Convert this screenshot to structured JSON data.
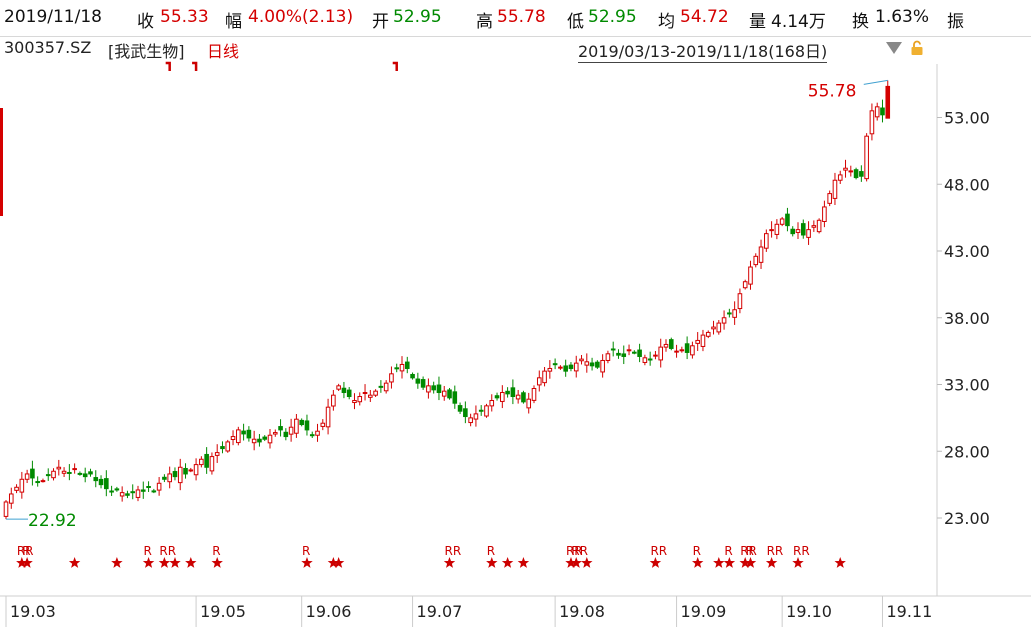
{
  "header": {
    "date": "2019/11/18",
    "close_label": "收",
    "close_value": "55.33",
    "change_label": "幅",
    "change_value": "4.00%(2.13)",
    "open_label": "开",
    "open_value": "52.95",
    "high_label": "高",
    "high_value": "55.78",
    "low_label": "低",
    "low_value": "52.95",
    "avg_label": "均",
    "avg_value": "54.72",
    "volume_label": "量",
    "volume_value": "4.14万",
    "turnover_label": "换",
    "turnover_value": "1.63%",
    "amplitude_label": "振"
  },
  "subheader": {
    "code": "300357.SZ",
    "name": "[我武生物]",
    "period": "日线",
    "range": "2019/03/13-2019/11/18(168日)"
  },
  "colors": {
    "up": "#d40000",
    "down": "#008a00",
    "marker": "#cc0000"
  },
  "chart_data": {
    "type": "candlestick",
    "x_range": [
      "2019-03-13",
      "2019-11-18"
    ],
    "sessions": 168,
    "ylim": [
      19.0,
      56.5
    ],
    "y_ticks": [
      "23.00",
      "28.00",
      "33.00",
      "38.00",
      "43.00",
      "48.00",
      "53.00"
    ],
    "y_tick_values": [
      23,
      28,
      33,
      38,
      43,
      48,
      53
    ],
    "x_ticks": [
      "19.03",
      "19.05",
      "19.06",
      "19.07",
      "19.08",
      "19.09",
      "19.10",
      "19.11"
    ],
    "x_tick_index": [
      0,
      36,
      56,
      77,
      104,
      127,
      147,
      166
    ],
    "max_label": "55.78",
    "min_label": "22.92",
    "closes": [
      24.2,
      24.8,
      25.3,
      25.9,
      26.3,
      26.0,
      25.7,
      25.8,
      26.2,
      26.5,
      26.8,
      26.5,
      26.4,
      26.7,
      26.3,
      26.1,
      26.3,
      25.8,
      25.5,
      25.2,
      25.0,
      25.1,
      24.9,
      24.7,
      24.9,
      25.1,
      25.0,
      25.3,
      25.0,
      25.6,
      25.9,
      26.3,
      26.1,
      26.8,
      26.3,
      26.6,
      27.0,
      27.4,
      26.8,
      27.6,
      27.9,
      28.2,
      28.7,
      29.1,
      29.6,
      29.3,
      29.0,
      28.9,
      28.7,
      28.9,
      29.2,
      29.4,
      29.6,
      29.1,
      29.8,
      30.4,
      30.0,
      29.6,
      29.2,
      29.5,
      30.1,
      31.3,
      32.2,
      32.9,
      32.4,
      32.1,
      31.8,
      32.1,
      32.4,
      32.2,
      32.5,
      32.8,
      33.1,
      33.8,
      34.2,
      34.5,
      34.2,
      33.5,
      33.1,
      32.8,
      32.9,
      32.6,
      32.4,
      32.5,
      32.0,
      31.6,
      31.0,
      30.6,
      30.5,
      30.8,
      31.0,
      31.4,
      31.8,
      32.0,
      32.4,
      32.3,
      32.1,
      32.2,
      31.7,
      31.9,
      32.7,
      33.5,
      34.0,
      34.2,
      34.5,
      34.3,
      34.0,
      34.2,
      34.6,
      34.9,
      34.7,
      34.4,
      34.3,
      34.8,
      35.3,
      35.6,
      35.2,
      35.1,
      35.6,
      35.4,
      35.1,
      35.0,
      34.9,
      35.2,
      35.8,
      36.0,
      35.7,
      35.5,
      35.6,
      35.4,
      35.9,
      36.3,
      36.7,
      36.9,
      37.3,
      37.6,
      38.0,
      38.3,
      38.6,
      39.8,
      40.7,
      41.8,
      42.6,
      43.3,
      44.3,
      44.6,
      45.0,
      45.4,
      44.9,
      44.3,
      44.6,
      44.2,
      44.6,
      44.9,
      45.3,
      46.3,
      47.3,
      48.3,
      48.7,
      49.2,
      49.0,
      48.5,
      48.6,
      51.6,
      53.5,
      53.8,
      53.2,
      55.33
    ],
    "markers": [
      {
        "index": 3,
        "tag": "RR"
      },
      {
        "index": 4,
        "tag": "R"
      },
      {
        "index": 13,
        "tag": ""
      },
      {
        "index": 21,
        "tag": ""
      },
      {
        "index": 27,
        "tag": "R"
      },
      {
        "index": 30,
        "tag": "RR"
      },
      {
        "index": 32,
        "tag": ""
      },
      {
        "index": 35,
        "tag": ""
      },
      {
        "index": 40,
        "tag": "R"
      },
      {
        "index": 57,
        "tag": "R"
      },
      {
        "index": 62,
        "tag": ""
      },
      {
        "index": 63,
        "tag": ""
      },
      {
        "index": 84,
        "tag": "RR"
      },
      {
        "index": 92,
        "tag": "R"
      },
      {
        "index": 95,
        "tag": ""
      },
      {
        "index": 98,
        "tag": ""
      },
      {
        "index": 107,
        "tag": "RR"
      },
      {
        "index": 108,
        "tag": "RR"
      },
      {
        "index": 110,
        "tag": ""
      },
      {
        "index": 123,
        "tag": "RR"
      },
      {
        "index": 131,
        "tag": "R"
      },
      {
        "index": 135,
        "tag": ""
      },
      {
        "index": 137,
        "tag": "R"
      },
      {
        "index": 140,
        "tag": "RR"
      },
      {
        "index": 141,
        "tag": "R"
      },
      {
        "index": 145,
        "tag": "RR"
      },
      {
        "index": 150,
        "tag": "RR"
      },
      {
        "index": 158,
        "tag": ""
      }
    ],
    "top_flags": [
      31,
      36,
      74
    ],
    "xlabel": "",
    "ylabel": ""
  }
}
